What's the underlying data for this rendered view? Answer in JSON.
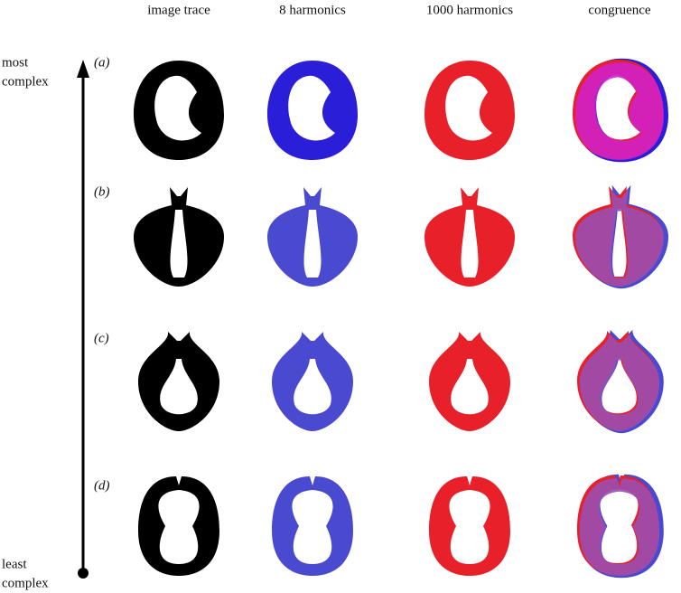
{
  "columns": [
    "image trace",
    "8 harmonics",
    "1000 harmonics",
    "congruence"
  ],
  "rows": [
    "(a)",
    "(b)",
    "(c)",
    "(d)"
  ],
  "axis": {
    "top": [
      "most",
      "complex"
    ],
    "bottom": [
      "least",
      "complex"
    ]
  }
}
